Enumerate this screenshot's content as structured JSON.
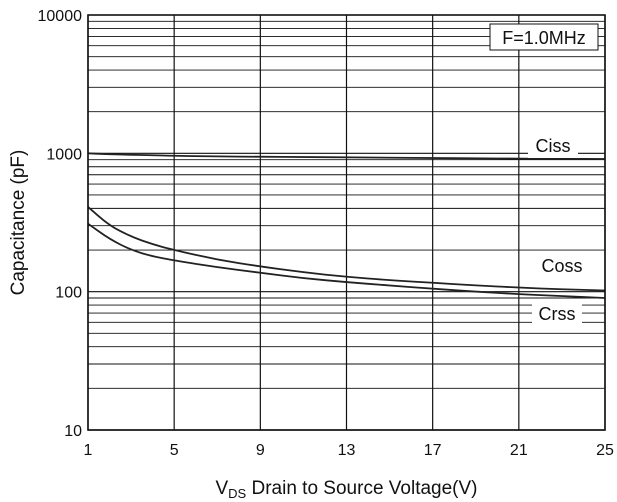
{
  "chart_data": {
    "type": "line",
    "title": "",
    "annotation": "F=1.0MHz",
    "xlabel_sub": "DS",
    "xlabel_prefix": "V",
    "xlabel_rest": " Drain to Source Voltage(V)",
    "ylabel": "Capacitance (pF)",
    "x_scale": "linear",
    "y_scale": "log",
    "xlim": [
      1,
      25
    ],
    "ylim": [
      10,
      10000
    ],
    "x_ticks": [
      1,
      5,
      9,
      13,
      17,
      21,
      25
    ],
    "x_tick_labels": [
      "1",
      "5",
      "9",
      "13",
      "17",
      "21",
      "25"
    ],
    "y_ticks": [
      10,
      100,
      1000,
      10000
    ],
    "y_tick_labels": [
      "10",
      "100",
      "1000",
      "10000"
    ],
    "grid": true,
    "series": [
      {
        "name": "Ciss",
        "x": [
          1,
          2,
          3,
          4,
          5,
          7,
          9,
          11,
          13,
          15,
          17,
          19,
          21,
          23,
          25
        ],
        "y": [
          1000,
          985,
          975,
          970,
          960,
          950,
          945,
          940,
          935,
          930,
          925,
          920,
          915,
          912,
          910
        ]
      },
      {
        "name": "Coss",
        "x": [
          1,
          2,
          3,
          4,
          5,
          7,
          9,
          11,
          13,
          15,
          17,
          19,
          21,
          23,
          25
        ],
        "y": [
          410,
          300,
          250,
          220,
          200,
          170,
          152,
          138,
          128,
          121,
          116,
          111,
          107,
          104,
          102
        ]
      },
      {
        "name": "Crss",
        "x": [
          1,
          2,
          3,
          4,
          5,
          7,
          9,
          11,
          13,
          15,
          17,
          19,
          21,
          23,
          25
        ],
        "y": [
          310,
          240,
          200,
          180,
          168,
          150,
          137,
          125,
          117,
          111,
          105,
          100,
          96,
          93,
          90
        ]
      }
    ]
  }
}
